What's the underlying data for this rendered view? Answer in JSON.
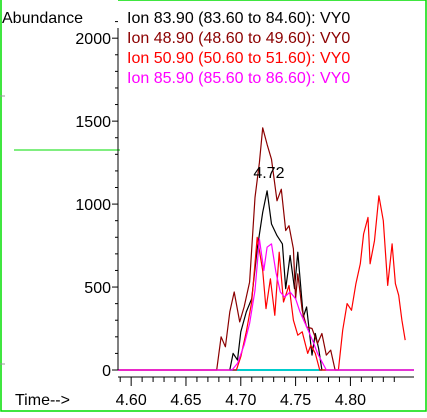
{
  "chart_data": {
    "type": "line",
    "ylabel": "Abundance",
    "xlabel": "Time-->",
    "xlim": [
      4.588,
      4.858
    ],
    "ylim": [
      0,
      2200
    ],
    "x_ticks": [
      4.6,
      4.65,
      4.7,
      4.75,
      4.8
    ],
    "x_tick_labels": [
      "4.60",
      "4.65",
      "4.70",
      "4.75",
      "4.80"
    ],
    "y_ticks": [
      0,
      500,
      1000,
      1500,
      2000
    ],
    "y_tick_labels": [
      "0",
      "500",
      "1000",
      "1500",
      "2000"
    ],
    "grid": false,
    "legend": "top-right",
    "annotations": [
      {
        "text": "4.72",
        "x": 4.722,
        "y": 1175
      }
    ],
    "series": [
      {
        "name": "Ion  83.90 (83.60 to 84.60): VY0",
        "color": "#000000",
        "points": [
          [
            4.588,
            0
          ],
          [
            4.69,
            0
          ],
          [
            4.693,
            100
          ],
          [
            4.697,
            60
          ],
          [
            4.7,
            230
          ],
          [
            4.705,
            350
          ],
          [
            4.71,
            430
          ],
          [
            4.715,
            730
          ],
          [
            4.72,
            950
          ],
          [
            4.724,
            1080
          ],
          [
            4.728,
            880
          ],
          [
            4.733,
            810
          ],
          [
            4.738,
            760
          ],
          [
            4.741,
            490
          ],
          [
            4.745,
            690
          ],
          [
            4.749,
            490
          ],
          [
            4.752,
            710
          ],
          [
            4.757,
            320
          ],
          [
            4.76,
            380
          ],
          [
            4.765,
            90
          ],
          [
            4.768,
            220
          ],
          [
            4.771,
            130
          ],
          [
            4.774,
            0
          ],
          [
            4.858,
            0
          ]
        ]
      },
      {
        "name": "Ion  48.90 (48.60 to 49.60): VY0",
        "color": "#8b0000",
        "points": [
          [
            4.588,
            0
          ],
          [
            4.678,
            0
          ],
          [
            4.682,
            200
          ],
          [
            4.686,
            140
          ],
          [
            4.69,
            350
          ],
          [
            4.694,
            470
          ],
          [
            4.699,
            290
          ],
          [
            4.703,
            380
          ],
          [
            4.708,
            530
          ],
          [
            4.713,
            1040
          ],
          [
            4.717,
            1250
          ],
          [
            4.72,
            1460
          ],
          [
            4.724,
            1360
          ],
          [
            4.728,
            1270
          ],
          [
            4.733,
            1020
          ],
          [
            4.737,
            1090
          ],
          [
            4.741,
            840
          ],
          [
            4.744,
            870
          ],
          [
            4.748,
            730
          ],
          [
            4.75,
            430
          ],
          [
            4.752,
            580
          ],
          [
            4.756,
            360
          ],
          [
            4.76,
            260
          ],
          [
            4.765,
            250
          ],
          [
            4.77,
            160
          ],
          [
            4.774,
            220
          ],
          [
            4.778,
            90
          ],
          [
            4.782,
            120
          ],
          [
            4.786,
            0
          ],
          [
            4.858,
            0
          ]
        ]
      },
      {
        "name": "Ion  50.90 (50.60 to 51.60): VY0",
        "color": "#ff0000",
        "points": [
          [
            4.588,
            0
          ],
          [
            4.696,
            0
          ],
          [
            4.7,
            80
          ],
          [
            4.705,
            230
          ],
          [
            4.71,
            410
          ],
          [
            4.715,
            800
          ],
          [
            4.72,
            600
          ],
          [
            4.723,
            370
          ],
          [
            4.727,
            550
          ],
          [
            4.731,
            330
          ],
          [
            4.735,
            710
          ],
          [
            4.739,
            410
          ],
          [
            4.744,
            510
          ],
          [
            4.748,
            300
          ],
          [
            4.752,
            210
          ],
          [
            4.756,
            230
          ],
          [
            4.761,
            100
          ],
          [
            4.764,
            150
          ],
          [
            4.768,
            100
          ],
          [
            4.772,
            0
          ],
          [
            4.789,
            0
          ],
          [
            4.793,
            240
          ],
          [
            4.797,
            400
          ],
          [
            4.801,
            360
          ],
          [
            4.805,
            520
          ],
          [
            4.809,
            640
          ],
          [
            4.812,
            820
          ],
          [
            4.816,
            920
          ],
          [
            4.818,
            640
          ],
          [
            4.822,
            780
          ],
          [
            4.826,
            1050
          ],
          [
            4.83,
            900
          ],
          [
            4.834,
            510
          ],
          [
            4.838,
            760
          ],
          [
            4.841,
            520
          ],
          [
            4.844,
            450
          ],
          [
            4.847,
            300
          ],
          [
            4.85,
            180
          ]
        ]
      },
      {
        "name": "Ion  85.90 (85.60 to 86.60): VY0",
        "color": "#ff00ff",
        "points": [
          [
            4.588,
            0
          ],
          [
            4.692,
            0
          ],
          [
            4.697,
            40
          ],
          [
            4.703,
            150
          ],
          [
            4.708,
            280
          ],
          [
            4.713,
            480
          ],
          [
            4.717,
            790
          ],
          [
            4.721,
            600
          ],
          [
            4.724,
            740
          ],
          [
            4.728,
            760
          ],
          [
            4.732,
            590
          ],
          [
            4.736,
            470
          ],
          [
            4.74,
            440
          ],
          [
            4.745,
            470
          ],
          [
            4.75,
            430
          ],
          [
            4.754,
            350
          ],
          [
            4.758,
            290
          ],
          [
            4.762,
            230
          ],
          [
            4.766,
            170
          ],
          [
            4.77,
            100
          ],
          [
            4.774,
            50
          ],
          [
            4.778,
            0
          ],
          [
            4.858,
            0
          ]
        ]
      }
    ],
    "colors": {
      "border": "#00dd00",
      "axis": "#000000",
      "baseline": "#00cccc"
    }
  }
}
